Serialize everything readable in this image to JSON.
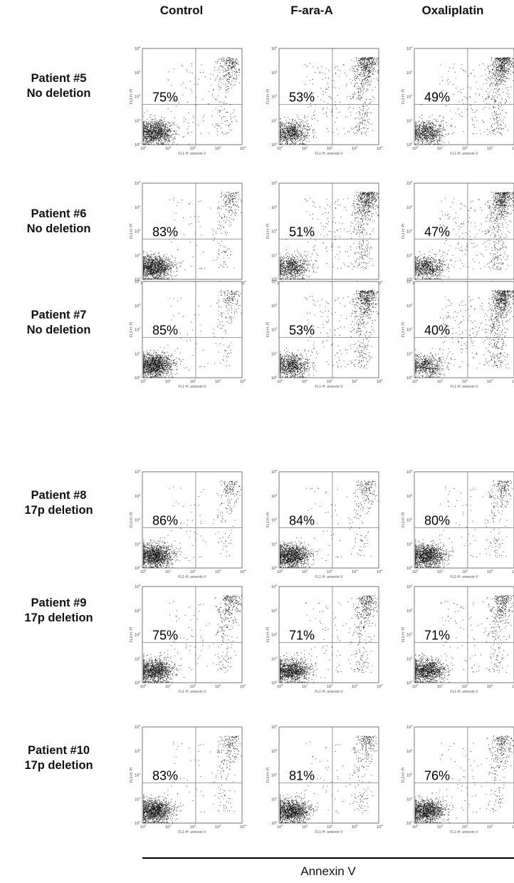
{
  "columns": [
    "Control",
    "F-ara-A",
    "Oxaliplatin"
  ],
  "rows": [
    {
      "line1": "Patient #5",
      "line2": "No deletion"
    },
    {
      "line1": "Patient #6",
      "line2": "No deletion"
    },
    {
      "line1": "Patient #7",
      "line2": "No deletion"
    },
    {
      "line1": "Patient #8",
      "line2": "17p deletion"
    },
    {
      "line1": "Patient #9",
      "line2": "17p deletion"
    },
    {
      "line1": "Patient #10",
      "line2": "17p deletion"
    }
  ],
  "x_axis_title": "Annexin V",
  "plot_xlabel": "FL1-H: annexin-V",
  "plot_ylabel": "FL3-H: PI",
  "tick_labels": [
    "10",
    "10",
    "10",
    "10",
    "10"
  ],
  "tick_exponents": [
    "0",
    "1",
    "2",
    "3",
    "4"
  ],
  "chart_data": {
    "type": "scatter",
    "title": "",
    "xlabel": "FL1-H: annexin-V",
    "ylabel": "FL3-H: PI",
    "xscale": "log",
    "yscale": "log",
    "xlim": [
      1,
      10000
    ],
    "ylim": [
      1,
      10000
    ],
    "categories": [
      "Control",
      "F-ara-A",
      "Oxaliplatin"
    ],
    "series": [
      {
        "name": "Patient #5 No deletion",
        "values": [
          75,
          53,
          49
        ]
      },
      {
        "name": "Patient #6 No deletion",
        "values": [
          83,
          51,
          47
        ]
      },
      {
        "name": "Patient #7 No deletion",
        "values": [
          85,
          53,
          40
        ]
      },
      {
        "name": "Patient #8 17p deletion",
        "values": [
          86,
          84,
          80
        ]
      },
      {
        "name": "Patient #9 17p deletion",
        "values": [
          75,
          71,
          71
        ]
      },
      {
        "name": "Patient #10 17p deletion",
        "values": [
          83,
          81,
          76
        ]
      }
    ],
    "value_labels": [
      [
        "75%",
        "53%",
        "49%"
      ],
      [
        "83%",
        "51%",
        "47%"
      ],
      [
        "85%",
        "53%",
        "40%"
      ],
      [
        "86%",
        "84%",
        "80%"
      ],
      [
        "75%",
        "71%",
        "71%"
      ],
      [
        "83%",
        "81%",
        "76%"
      ]
    ]
  }
}
